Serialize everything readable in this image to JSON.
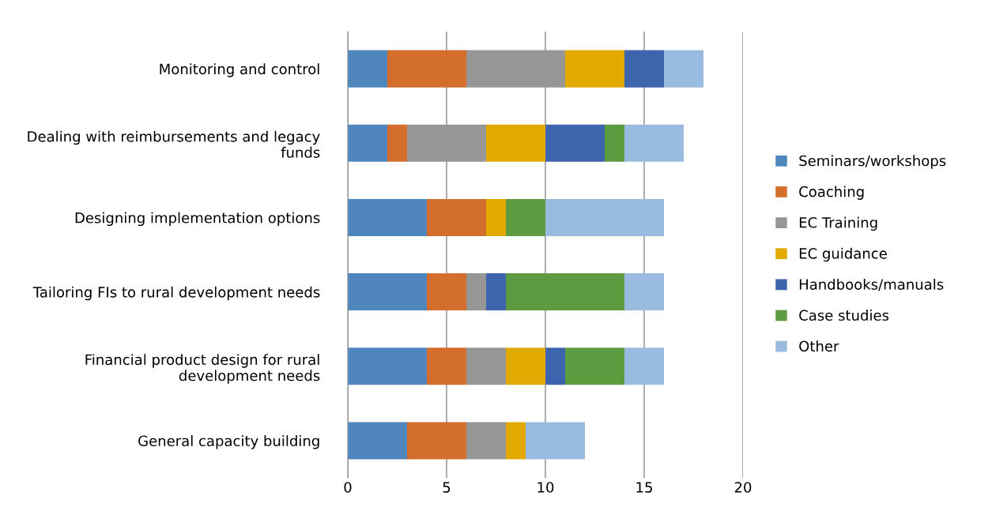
{
  "chart_data": {
    "type": "bar",
    "orientation": "horizontal",
    "stacked": true,
    "categories": [
      "Monitoring and control",
      "Dealing with reimbursements and legacy funds",
      "Designing implementation options",
      "Tailoring FIs to rural development needs",
      "Financial product design for rural development needs",
      "General capacity building"
    ],
    "series": [
      {
        "name": "Seminars/workshops",
        "color": "#4f86be",
        "values": [
          2,
          2,
          4,
          4,
          4,
          3
        ]
      },
      {
        "name": "Coaching",
        "color": "#d46e2c",
        "values": [
          4,
          1,
          3,
          2,
          2,
          3
        ]
      },
      {
        "name": "EC Training",
        "color": "#969696",
        "values": [
          5,
          4,
          0,
          1,
          2,
          2
        ]
      },
      {
        "name": "EC guidance",
        "color": "#e2aa00",
        "values": [
          3,
          3,
          1,
          0,
          2,
          1
        ]
      },
      {
        "name": "Handbooks/manuals",
        "color": "#3c65ae",
        "values": [
          2,
          3,
          0,
          1,
          1,
          0
        ]
      },
      {
        "name": "Case studies",
        "color": "#5e9a40",
        "values": [
          0,
          1,
          2,
          6,
          3,
          0
        ]
      },
      {
        "name": "Other",
        "color": "#9abbe0",
        "values": [
          2,
          3,
          6,
          2,
          2,
          3
        ]
      }
    ],
    "xlim": [
      0,
      20
    ],
    "xticks": [
      0,
      5,
      10,
      15,
      20
    ],
    "grid": "x",
    "legend": "right"
  }
}
